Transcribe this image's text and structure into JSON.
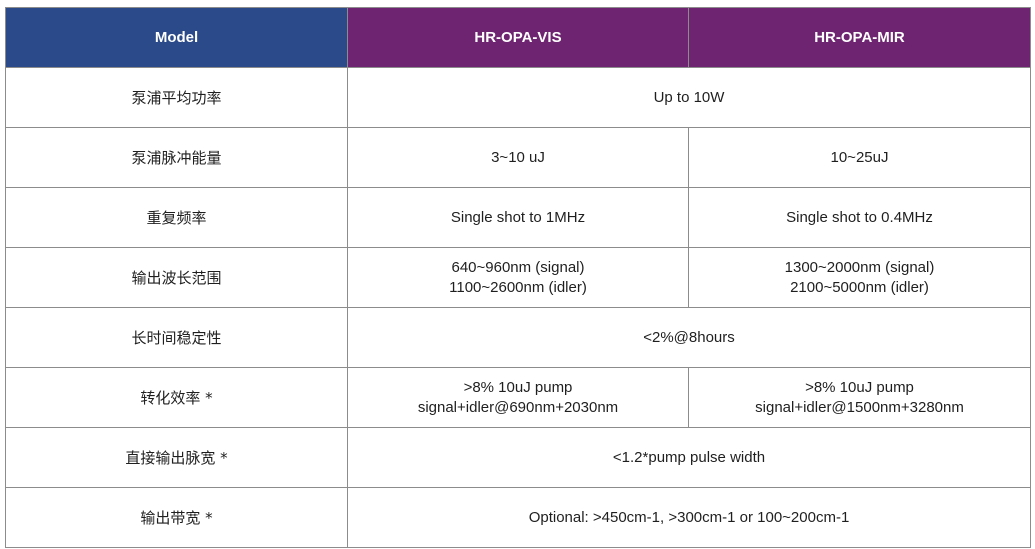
{
  "header": {
    "model": "Model",
    "col_vis": "HR-OPA-VIS",
    "col_mir": "HR-OPA-MIR"
  },
  "rows": [
    {
      "label": "泵浦平均功率",
      "shared": "Up to 10W"
    },
    {
      "label": "泵浦脉冲能量",
      "vis": "3~10 uJ",
      "mir": "10~25uJ"
    },
    {
      "label": "重复频率",
      "vis": "Single shot to 1MHz",
      "mir": "Single shot to 0.4MHz"
    },
    {
      "label": "输出波长范围",
      "vis_l1": "640~960nm (signal)",
      "vis_l2": "1100~2600nm (idler)",
      "mir_l1": "1300~2000nm (signal)",
      "mir_l2": "2100~5000nm (idler)"
    },
    {
      "label": "长时间稳定性",
      "shared": "<2%@8hours"
    },
    {
      "label": "转化效率 *",
      "vis_l1": ">8% 10uJ pump",
      "vis_l2": "signal+idler@690nm+2030nm",
      "mir_l1": ">8% 10uJ pump",
      "mir_l2": "signal+idler@1500nm+3280nm"
    },
    {
      "label": "直接输出脉宽 *",
      "shared": "<1.2*pump pulse width"
    },
    {
      "label": "输出带宽 *",
      "shared": "Optional: >450cm-1, >300cm-1 or 100~200cm-1"
    }
  ]
}
